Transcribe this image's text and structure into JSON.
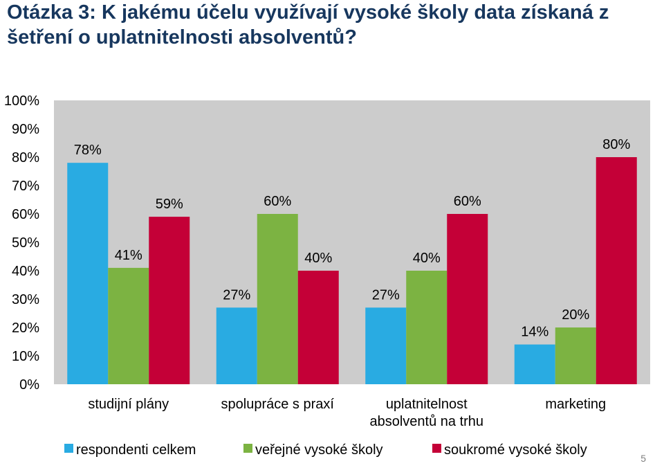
{
  "slide": {
    "title": "Otázka 3: K jakému účelu využívají vysoké školy data získaná z šetření o uplatnitelnosti absolventů?",
    "page_number": "5"
  },
  "colors": {
    "plot_background": "#cccccc",
    "respondenti": "#29abe2",
    "verejne": "#7cb342",
    "soukrome": "#c40037"
  },
  "chart_data": {
    "type": "bar",
    "categories": [
      [
        "studijní plány"
      ],
      [
        "spolupráce s praxí"
      ],
      [
        "uplatnitelnost",
        "absolventů na trhu"
      ],
      [
        "marketing"
      ]
    ],
    "series": [
      {
        "name": "respondenti celkem",
        "values": [
          78,
          27,
          27,
          14
        ],
        "labels": [
          "78%",
          "27%",
          "27%",
          "14%"
        ]
      },
      {
        "name": "veřejné vysoké školy",
        "values": [
          41,
          60,
          40,
          20
        ],
        "labels": [
          "41%",
          "60%",
          "40%",
          "20%"
        ]
      },
      {
        "name": "soukromé vysoké školy",
        "values": [
          59,
          40,
          60,
          80
        ],
        "labels": [
          "59%",
          "40%",
          "60%",
          "80%"
        ]
      }
    ],
    "ylim": [
      0,
      100
    ],
    "yticks": [
      "0%",
      "10%",
      "20%",
      "30%",
      "40%",
      "50%",
      "60%",
      "70%",
      "80%",
      "90%",
      "100%"
    ],
    "grid": false,
    "legend": "bottom"
  }
}
